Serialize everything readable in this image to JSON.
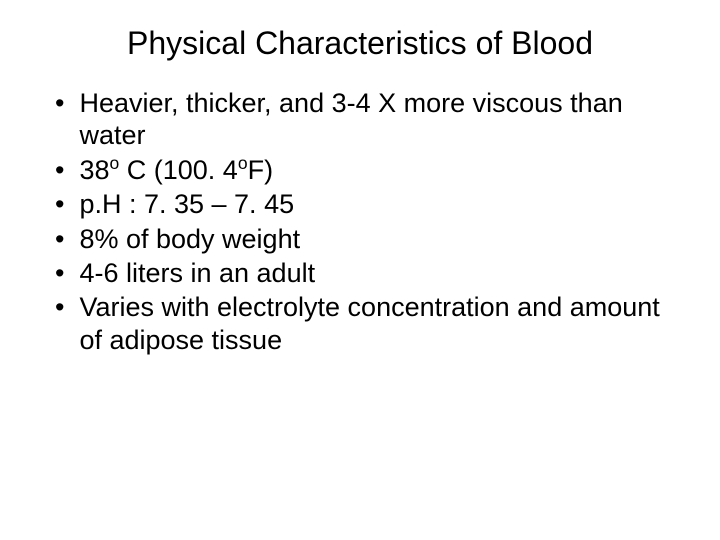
{
  "title": "Physical Characteristics of Blood",
  "bullets": [
    {
      "text": "Heavier, thicker, and 3-4 X more viscous than water"
    },
    {
      "html": "38<span class=\"sup\">o</span> C  (100. 4<span class=\"sup\">o</span>F)"
    },
    {
      "text": "p.H : 7. 35 – 7. 45"
    },
    {
      "text": "8% of body weight"
    },
    {
      "text": "4-6 liters in an adult"
    },
    {
      "text": "Varies with electrolyte concentration and amount of adipose tissue"
    }
  ],
  "style": {
    "background_color": "#ffffff",
    "text_color": "#000000",
    "title_fontsize": 32,
    "body_fontsize": 27,
    "font_family": "Arial"
  }
}
